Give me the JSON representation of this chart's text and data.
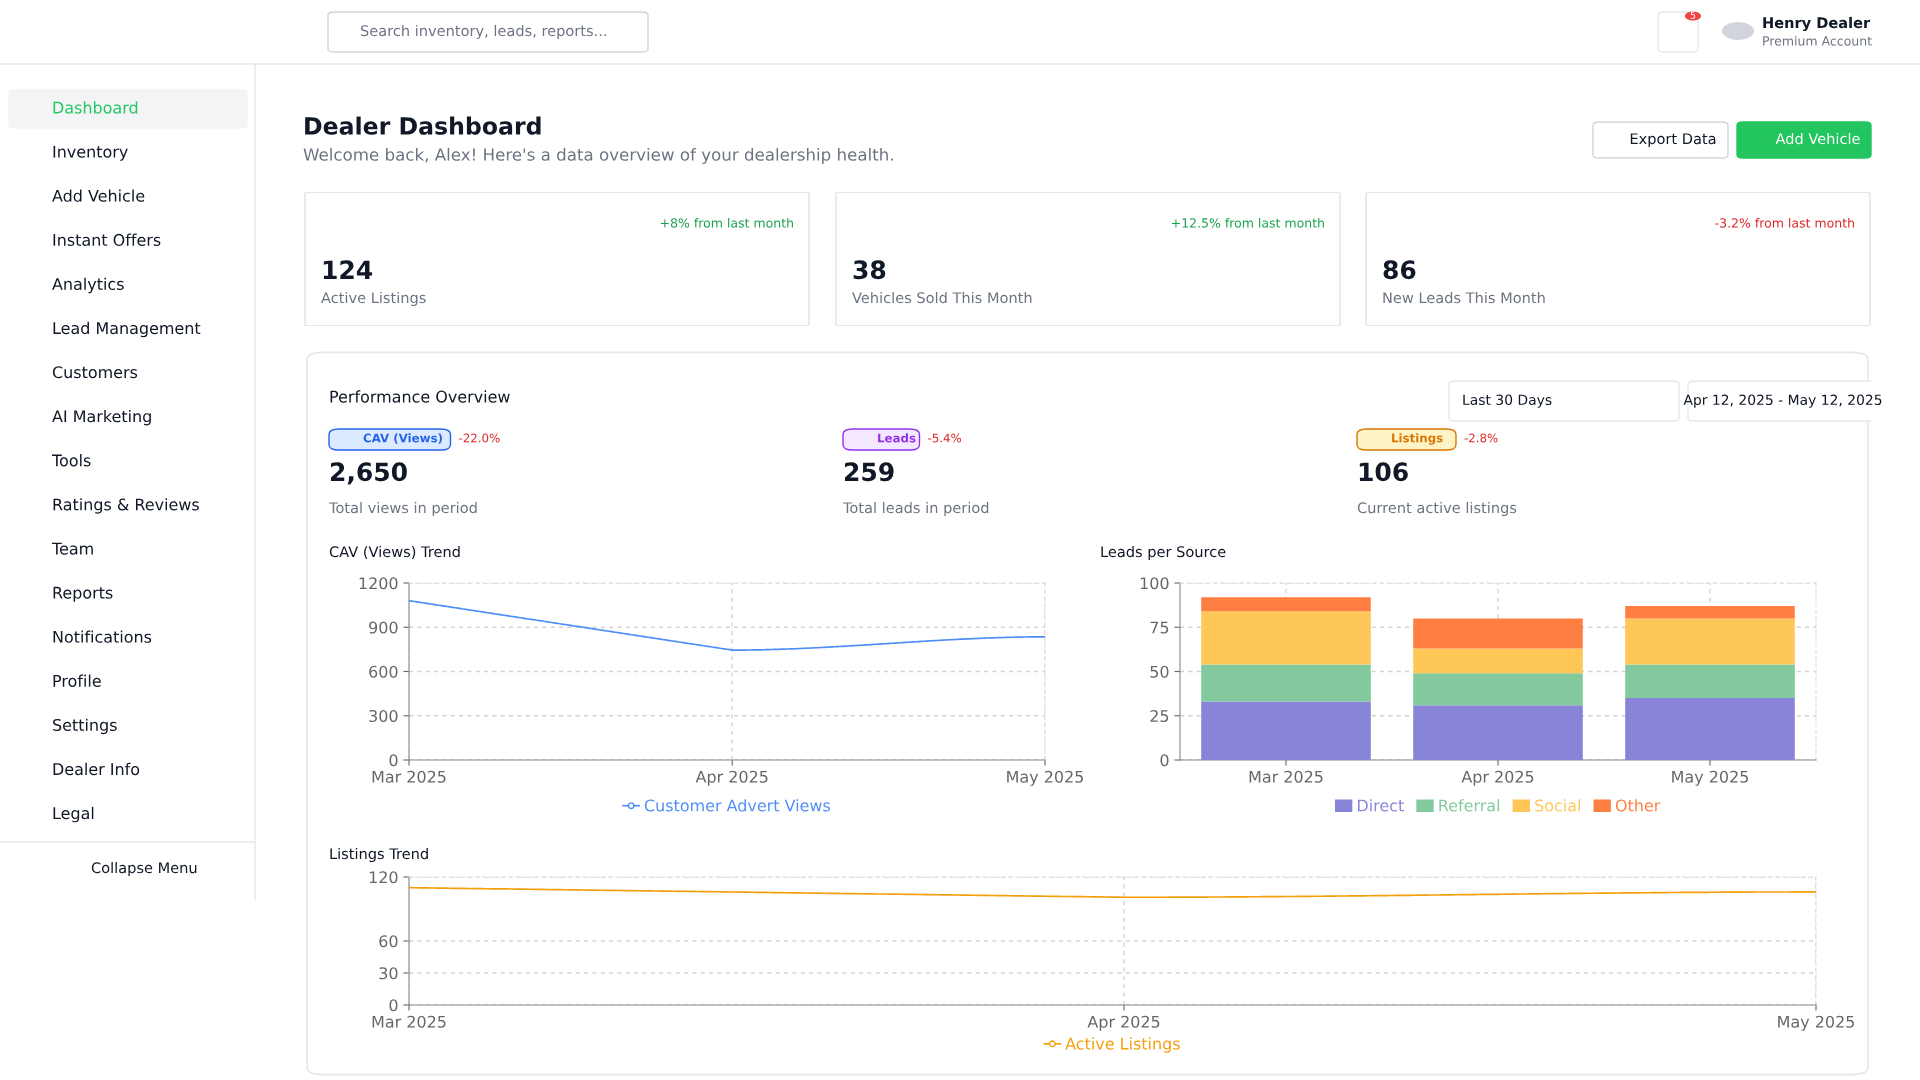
{
  "chart_data": [
    {
      "type": "other",
      "annotations": [
        "Dashboard",
        "Inventory",
        "Add Vehicle",
        "Instant Offers",
        "Analytics",
        "Lead Management",
        "Customers",
        "AI Marketing",
        "Tools",
        "Ratings & Reviews",
        "Team",
        "Reports",
        "Notifications",
        "Profile",
        "Settings",
        "Dealer Info",
        "Legal",
        "Collapse Menu"
      ]
    },
    {
      "type": "other",
      "annotations": [
        "Search inventory, leads, reports...",
        "5",
        "Henry Dealer",
        "Premium Account"
      ]
    },
    {
      "type": "other",
      "title": "Dealer Dashboard",
      "subtitle": "Welcome back, Alex! Here's a data overview of your dealership health.",
      "annotations": [
        "Export Data",
        "Add Vehicle"
      ]
    },
    {
      "type": "other",
      "color": "#16a34a",
      "annotations": [
        "+8% from last month",
        "124",
        "Active Listings"
      ]
    },
    {
      "type": "other",
      "color": "#16a34a",
      "annotations": [
        "+12.5% from last month",
        "38",
        "Vehicles Sold This Month"
      ]
    },
    {
      "type": "other",
      "color": "#dc2626",
      "annotations": [
        "-3.2% from last month",
        "86",
        "New Leads This Month"
      ]
    },
    {
      "type": "other",
      "title": "Performance Overview",
      "annotations": [
        "Last 30 Days",
        "Apr 12, 2025 - May 12, 2025",
        "CAV (Views)",
        "-22.0%",
        "2,650",
        "Total views in period",
        "Leads",
        "-5.4%",
        "259",
        "Total leads in period",
        "Listings",
        "-2.8%",
        "106",
        "Current active listings"
      ]
    },
    {
      "type": "line",
      "title": "CAV (Views) Trend",
      "x": [
        "2025-03",
        "2025-04",
        "2025-05"
      ],
      "series": [
        {
          "name": "Customer Advert Views",
          "color": "#4f8ef7",
          "values": [
            1080,
            745,
            835
          ]
        }
      ],
      "xlim": [
        "2025-03",
        "2025-05"
      ],
      "xticks": [
        {
          "value": "2025-03",
          "label": "Mar 2025"
        },
        {
          "value": "2025-04",
          "label": "Apr 2025"
        },
        {
          "value": "2025-05",
          "label": "May 2025"
        }
      ],
      "ylim": [
        0,
        1200
      ],
      "yticks": [
        0,
        300,
        600,
        900,
        1200
      ],
      "grid": true,
      "legend": "bottom",
      "marker": "none",
      "line_style": "solid"
    },
    {
      "type": "bar",
      "title": "Leads per Source",
      "stacked": true,
      "categories": [
        "Mar 2025",
        "Apr 2025",
        "May 2025"
      ],
      "series": [
        {
          "name": "Direct",
          "color": "#8884d8",
          "values": [
            33,
            31,
            35
          ]
        },
        {
          "name": "Referral",
          "color": "#82ca9d",
          "values": [
            21,
            18,
            19
          ]
        },
        {
          "name": "Social",
          "color": "#ffc658",
          "values": [
            30,
            14,
            26
          ]
        },
        {
          "name": "Other",
          "color": "#ff7f42",
          "values": [
            8,
            17,
            7
          ]
        }
      ],
      "ylim": [
        0,
        100
      ],
      "yticks": [
        0,
        25,
        50,
        75,
        100
      ],
      "grid": true,
      "legend": "bottom"
    },
    {
      "type": "line",
      "title": "Listings Trend",
      "x": [
        "2025-03",
        "2025-04",
        "2025-05"
      ],
      "series": [
        {
          "name": "Active Listings",
          "color": "#f59e0b",
          "values": [
            110,
            101,
            106
          ]
        }
      ],
      "xlim": [
        "2025-03",
        "2025-05"
      ],
      "xticks": [
        {
          "value": "2025-03",
          "label": "Mar 2025"
        },
        {
          "value": "2025-04",
          "label": "Apr 2025"
        },
        {
          "value": "2025-05",
          "label": "May 2025"
        }
      ],
      "ylim": [
        0,
        120
      ],
      "yticks": [
        0,
        30,
        60,
        120
      ],
      "grid": true,
      "legend": "bottom",
      "marker": "none",
      "line_style": "solid"
    }
  ]
}
